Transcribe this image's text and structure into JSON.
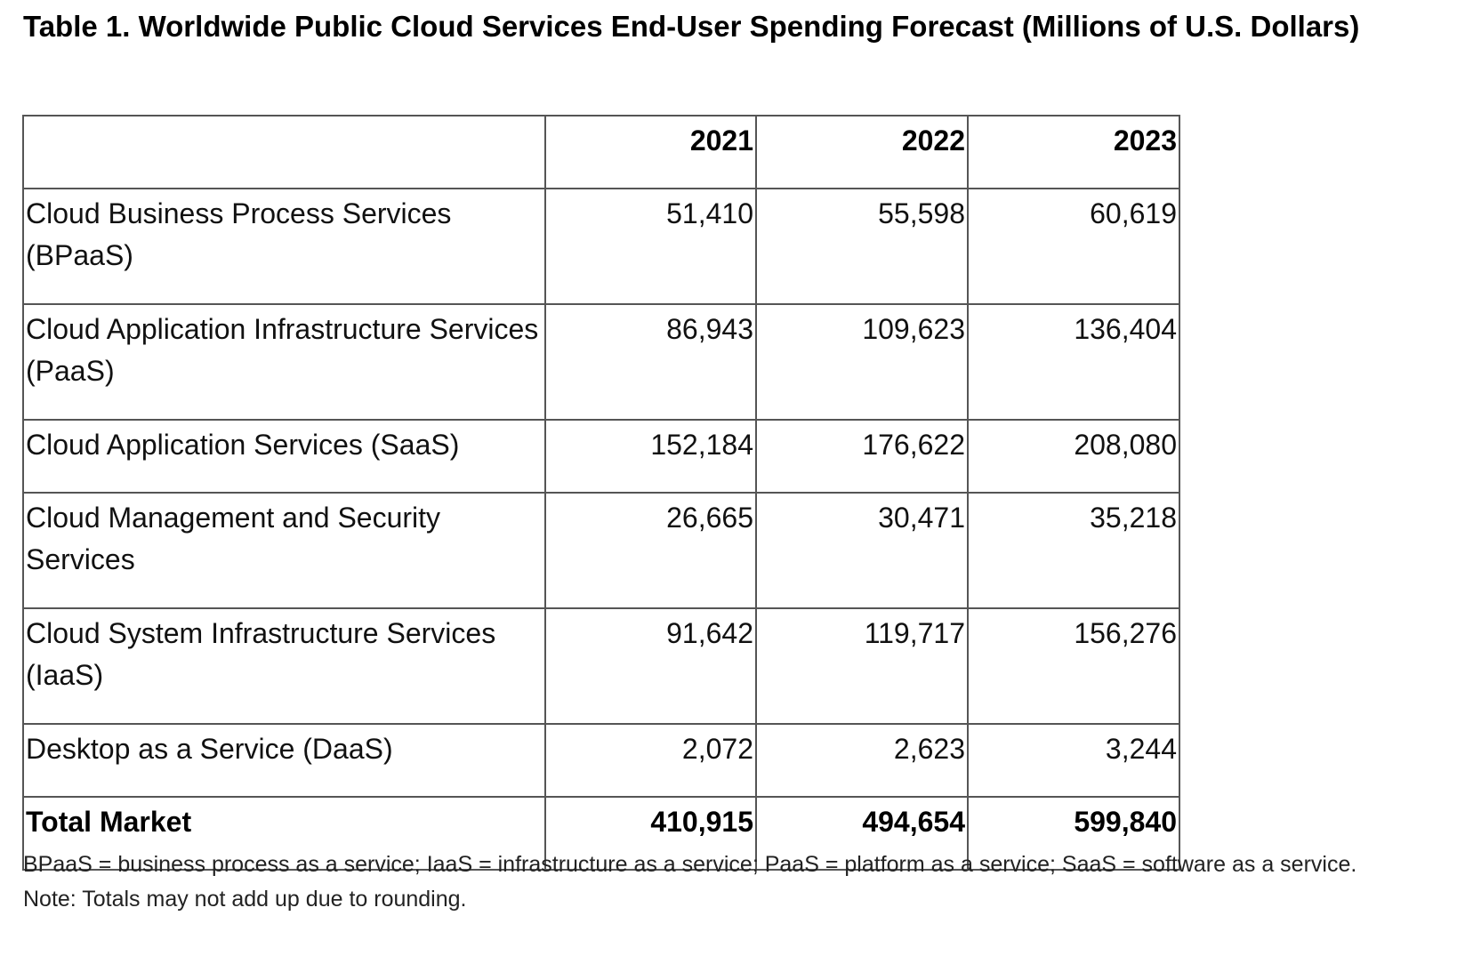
{
  "title": "Table 1. Worldwide Public Cloud Services End-User Spending Forecast (Millions of U.S. Dollars)",
  "chart_data": {
    "type": "table",
    "title": "Table 1. Worldwide Public Cloud Services End-User Spending Forecast (Millions of U.S. Dollars)",
    "columns": [
      "",
      "2021",
      "2022",
      "2023"
    ],
    "rows": [
      {
        "label": "Cloud Business Process Services (BPaaS)",
        "values": [
          "51,410",
          "55,598",
          "60,619"
        ]
      },
      {
        "label": "Cloud Application Infrastructure Services (PaaS)",
        "values": [
          "86,943",
          "109,623",
          "136,404"
        ]
      },
      {
        "label": "Cloud Application Services (SaaS)",
        "values": [
          "152,184",
          "176,622",
          "208,080"
        ]
      },
      {
        "label": "Cloud Management and Security Services",
        "values": [
          "26,665",
          "30,471",
          "35,218"
        ]
      },
      {
        "label": "Cloud System Infrastructure Services (IaaS)",
        "values": [
          "91,642",
          "119,717",
          "156,276"
        ]
      },
      {
        "label": "Desktop as a Service (DaaS)",
        "values": [
          "2,072",
          "2,623",
          "3,244"
        ]
      }
    ],
    "total": {
      "label": "Total Market",
      "values": [
        "410,915",
        "494,654",
        "599,840"
      ]
    }
  },
  "footnote": "BPaaS = business process as a service; IaaS = infrastructure as a service; PaaS = platform as a service; SaaS = software as a service. Note: Totals may not add up due to rounding."
}
